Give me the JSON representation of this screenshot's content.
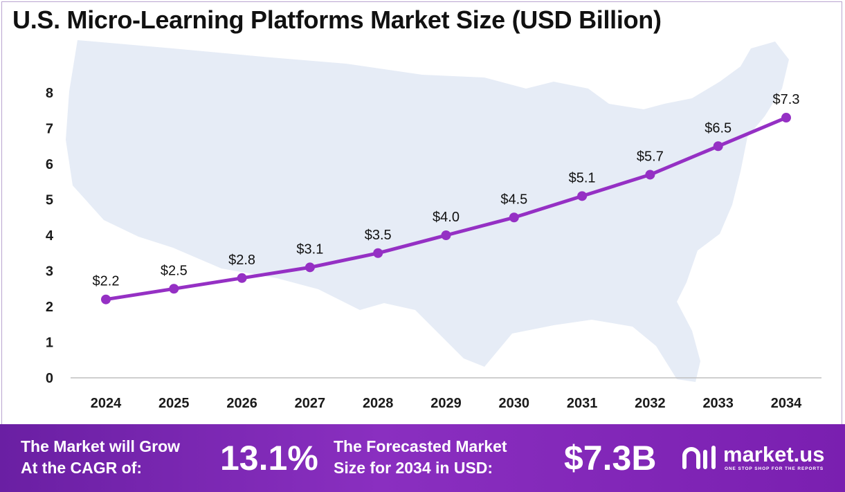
{
  "title": "U.S. Micro-Learning Platforms Market Size (USD Billion)",
  "colors": {
    "line": "#9530c4",
    "marker": "#9530c4",
    "map": "#e6ecf6",
    "footer_start": "#6a1fa3",
    "footer_end": "#8a2fc0",
    "axis": "#bfbfbf"
  },
  "chart_data": {
    "type": "line",
    "title": "U.S. Micro-Learning Platforms Market Size (USD Billion)",
    "xlabel": "",
    "ylabel": "",
    "categories": [
      "2024",
      "2025",
      "2026",
      "2027",
      "2028",
      "2029",
      "2030",
      "2031",
      "2032",
      "2033",
      "2034"
    ],
    "series": [
      {
        "values": [
          2.2,
          2.5,
          2.8,
          3.1,
          3.5,
          4.0,
          4.5,
          5.1,
          5.7,
          6.5,
          7.3
        ]
      }
    ],
    "data_labels": [
      "$2.2",
      "$2.5",
      "$2.8",
      "$3.1",
      "$3.5",
      "$4.0",
      "$4.5",
      "$5.1",
      "$5.7",
      "$6.5",
      "$7.3"
    ],
    "ylim": [
      0,
      8
    ],
    "yticks": [
      "0",
      "1",
      "2",
      "3",
      "4",
      "5",
      "6",
      "7",
      "8"
    ],
    "grid": false,
    "legend": "none",
    "background": "faded map of the United States"
  },
  "footer": {
    "cagr_text_line1": "The Market will Grow",
    "cagr_text_line2": "At the CAGR of:",
    "cagr_value": "13.1%",
    "forecast_text_line1": "The Forecasted Market",
    "forecast_text_line2": "Size for 2034 in USD:",
    "forecast_value": "$7.3B"
  },
  "brand": {
    "name": "market.us",
    "tagline": "ONE STOP SHOP FOR THE REPORTS",
    "icon": "market-us-logo-icon"
  }
}
